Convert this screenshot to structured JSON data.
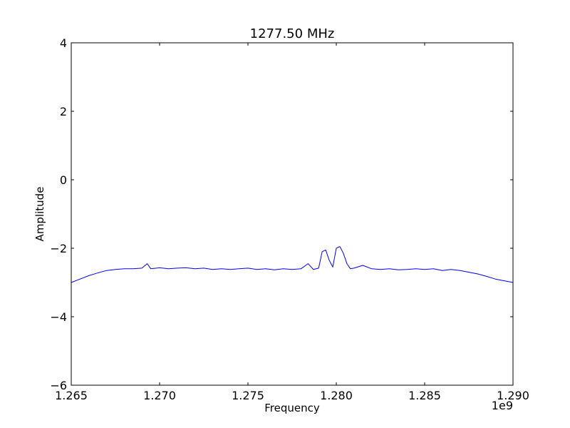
{
  "chart_data": {
    "type": "line",
    "title": "1277.50 MHz",
    "xlabel": "Frequency",
    "ylabel": "Amplitude",
    "x_offset_label": "1e9",
    "xlim": [
      1.265,
      1.29
    ],
    "ylim": [
      -6,
      4
    ],
    "x_ticks": [
      1.265,
      1.27,
      1.275,
      1.28,
      1.285,
      1.29
    ],
    "x_tick_labels": [
      "1.265",
      "1.270",
      "1.275",
      "1.280",
      "1.285",
      "1.290"
    ],
    "y_ticks": [
      4,
      2,
      0,
      -2,
      -4,
      -6
    ],
    "y_tick_labels": [
      "4",
      "2",
      "0",
      "−2",
      "−4",
      "−6"
    ],
    "grid": false,
    "legend": "none",
    "series": [
      {
        "color": "#0000ff",
        "x": [
          1.265,
          1.2655,
          1.266,
          1.2665,
          1.267,
          1.2675,
          1.268,
          1.2685,
          1.269,
          1.2693,
          1.2695,
          1.27,
          1.2705,
          1.271,
          1.2715,
          1.272,
          1.2725,
          1.273,
          1.2735,
          1.274,
          1.2745,
          1.275,
          1.2755,
          1.276,
          1.2765,
          1.277,
          1.2775,
          1.278,
          1.2784,
          1.2787,
          1.279,
          1.2792,
          1.2794,
          1.2796,
          1.2798,
          1.28,
          1.2802,
          1.2804,
          1.2806,
          1.2808,
          1.281,
          1.2815,
          1.282,
          1.2825,
          1.283,
          1.2835,
          1.284,
          1.2845,
          1.285,
          1.2855,
          1.286,
          1.2865,
          1.287,
          1.2875,
          1.288,
          1.2885,
          1.289,
          1.2895,
          1.29
        ],
        "y": [
          -3.0,
          -2.9,
          -2.8,
          -2.72,
          -2.65,
          -2.62,
          -2.6,
          -2.6,
          -2.58,
          -2.45,
          -2.6,
          -2.57,
          -2.6,
          -2.58,
          -2.57,
          -2.6,
          -2.58,
          -2.62,
          -2.6,
          -2.62,
          -2.6,
          -2.58,
          -2.62,
          -2.6,
          -2.63,
          -2.6,
          -2.62,
          -2.6,
          -2.45,
          -2.62,
          -2.58,
          -2.1,
          -2.05,
          -2.35,
          -2.55,
          -2.0,
          -1.95,
          -2.15,
          -2.45,
          -2.6,
          -2.58,
          -2.5,
          -2.6,
          -2.62,
          -2.6,
          -2.63,
          -2.62,
          -2.6,
          -2.62,
          -2.6,
          -2.65,
          -2.62,
          -2.65,
          -2.7,
          -2.75,
          -2.82,
          -2.9,
          -2.95,
          -3.0
        ]
      }
    ]
  }
}
